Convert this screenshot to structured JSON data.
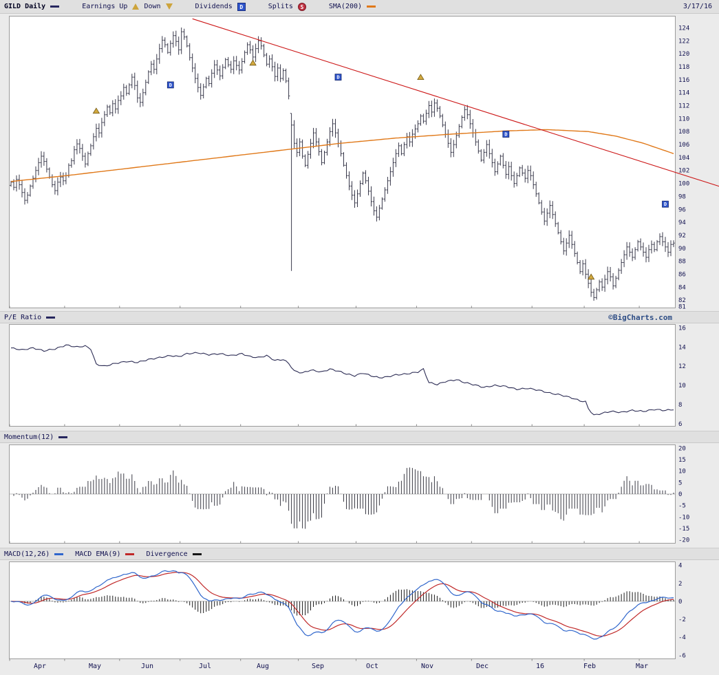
{
  "meta": {
    "date": "3/17/16",
    "watermark": "©BigCharts.com"
  },
  "legend_top": {
    "symbol": "GILD Daily",
    "earnings_up": "Earnings Up",
    "earnings_down": "Down",
    "dividends": "Dividends",
    "splits": "Splits",
    "sma": "SMA(200)"
  },
  "panel_labels": {
    "pe": "P/E Ratio",
    "momentum": "Momentum(12)",
    "macd": "MACD(12,26)",
    "macd_ema": "MACD EMA(9)",
    "divergence": "Divergence"
  },
  "icons": {
    "dividend_letter": "D",
    "split_letter": "S"
  },
  "colors": {
    "price_bars": "#38384a",
    "sma200": "#e07818",
    "trendline": "#cc1515",
    "pe_line": "#2c2c54",
    "momentum_bars": "#3a3a44",
    "macd_line": "#2f66cc",
    "macd_signal": "#c02828",
    "divergence_bars": "#1a1a1a",
    "earnings_marker": "#d2a93f",
    "dividend_marker": "#2f55cc",
    "axis_text": "#10104f"
  },
  "x_axis": {
    "months": [
      {
        "label": "Apr",
        "start_i": 0,
        "label_i": 11
      },
      {
        "label": "May",
        "start_i": 20,
        "label_i": 31
      },
      {
        "label": "Jun",
        "start_i": 40,
        "label_i": 50
      },
      {
        "label": "Jul",
        "start_i": 62,
        "label_i": 71
      },
      {
        "label": "Aug",
        "start_i": 84,
        "label_i": 92
      },
      {
        "label": "Sep",
        "start_i": 105,
        "label_i": 112
      },
      {
        "label": "Oct",
        "start_i": 126,
        "label_i": 132
      },
      {
        "label": "Nov",
        "start_i": 148,
        "label_i": 152
      },
      {
        "label": "Dec",
        "start_i": 168,
        "label_i": 172
      },
      {
        "label": "16",
        "start_i": 190,
        "label_i": 193
      },
      {
        "label": "Feb",
        "start_i": 209,
        "label_i": 211
      },
      {
        "label": "Mar",
        "start_i": 229,
        "label_i": 230
      }
    ]
  },
  "chart_data": [
    {
      "id": "price",
      "type": "ohlc-bar",
      "title": "GILD Daily",
      "ylim": [
        80.8,
        125.8
      ],
      "yticks": [
        124,
        122,
        120,
        118,
        116,
        114,
        112,
        110,
        108,
        106,
        104,
        102,
        100,
        98,
        96,
        94,
        92,
        90,
        88,
        86,
        84,
        82,
        81
      ],
      "close": [
        100.2,
        99.4,
        100.6,
        99.8,
        98.6,
        97.4,
        98.2,
        99.6,
        100.8,
        102.0,
        103.2,
        104.2,
        103.4,
        102.2,
        101.0,
        99.8,
        98.9,
        100.2,
        101.0,
        100.4,
        101.2,
        102.8,
        103.5,
        105.2,
        106.1,
        105.4,
        104.2,
        103.0,
        104.6,
        105.8,
        107.2,
        108.5,
        107.8,
        109.4,
        110.6,
        111.8,
        110.9,
        112.3,
        111.5,
        112.8,
        113.5,
        114.8,
        113.9,
        115.2,
        116.4,
        115.1,
        113.2,
        112.5,
        114.0,
        115.6,
        117.2,
        118.4,
        117.6,
        119.2,
        120.8,
        122.1,
        121.4,
        120.2,
        121.6,
        122.8,
        121.9,
        120.6,
        123.4,
        122.6,
        121.2,
        119.4,
        117.8,
        116.2,
        114.8,
        113.6,
        114.9,
        116.2,
        115.4,
        117.0,
        118.3,
        117.5,
        116.6,
        117.9,
        119.1,
        118.3,
        117.6,
        118.9,
        118.2,
        117.5,
        118.8,
        120.2,
        121.4,
        120.6,
        119.5,
        120.8,
        122.0,
        121.2,
        119.8,
        118.4,
        119.2,
        118.0,
        116.5,
        117.8,
        116.2,
        117.4,
        115.8,
        113.5,
        109.0,
        106.2,
        104.8,
        106.4,
        104.2,
        102.8,
        104.5,
        106.2,
        107.8,
        106.4,
        104.9,
        103.2,
        104.8,
        106.4,
        108.0,
        109.2,
        107.8,
        106.2,
        104.6,
        102.8,
        101.2,
        99.6,
        98.2,
        97.0,
        98.4,
        100.0,
        101.6,
        100.4,
        98.8,
        97.2,
        95.8,
        94.8,
        96.2,
        97.6,
        99.0,
        100.4,
        101.8,
        103.2,
        104.6,
        105.8,
        104.6,
        106.0,
        107.2,
        106.4,
        107.6,
        108.4,
        109.2,
        110.4,
        109.6,
        110.8,
        112.0,
        111.0,
        112.4,
        111.6,
        110.4,
        109.0,
        107.6,
        106.2,
        104.8,
        106.0,
        107.4,
        108.8,
        110.2,
        111.4,
        110.6,
        109.2,
        107.8,
        106.4,
        105.0,
        103.6,
        104.8,
        106.0,
        104.6,
        103.2,
        101.8,
        103.0,
        104.2,
        102.8,
        101.4,
        102.6,
        101.2,
        100.0,
        101.2,
        102.4,
        101.6,
        100.8,
        102.0,
        101.2,
        99.8,
        98.4,
        97.0,
        95.6,
        94.2,
        95.4,
        96.6,
        95.2,
        93.8,
        92.4,
        91.0,
        89.6,
        90.8,
        92.0,
        90.6,
        89.2,
        87.8,
        86.4,
        87.6,
        86.0,
        84.6,
        83.2,
        82.4,
        83.6,
        84.8,
        84.0,
        85.2,
        86.4,
        85.6,
        84.2,
        85.4,
        86.6,
        87.8,
        89.0,
        90.2,
        89.4,
        88.6,
        89.8,
        91.0,
        90.2,
        89.4,
        88.6,
        89.8,
        90.6,
        89.8,
        91.0,
        91.8,
        91.0,
        90.2,
        89.4,
        90.6,
        90.8
      ],
      "bar_overrides": {
        "102": {
          "low": 86.5,
          "high": 110.8
        },
        "212": {
          "low": 81.9
        }
      },
      "sma200_anchors": [
        [
          0,
          100.3
        ],
        [
          20,
          101.2
        ],
        [
          40,
          102.2
        ],
        [
          60,
          103.2
        ],
        [
          80,
          104.2
        ],
        [
          100,
          105.2
        ],
        [
          120,
          106.2
        ],
        [
          140,
          107.0
        ],
        [
          160,
          107.6
        ],
        [
          180,
          108.1
        ],
        [
          195,
          108.3
        ],
        [
          210,
          108.0
        ],
        [
          220,
          107.3
        ],
        [
          230,
          106.2
        ],
        [
          241,
          104.6
        ]
      ],
      "trendline": {
        "from": {
          "i": 66,
          "price": 125.4
        },
        "to": {
          "i": 258,
          "price": 99.5
        }
      },
      "markers": {
        "earnings_up": [
          {
            "i": 31,
            "price": 111.2
          },
          {
            "i": 88,
            "price": 118.6
          },
          {
            "i": 149,
            "price": 116.4
          },
          {
            "i": 211,
            "price": 85.6
          }
        ],
        "dividends": [
          {
            "i": 58,
            "price": 115.2
          },
          {
            "i": 119,
            "price": 116.4
          },
          {
            "i": 180,
            "price": 107.6
          },
          {
            "i": 238,
            "price": 96.8
          }
        ]
      }
    },
    {
      "id": "pe",
      "type": "line",
      "title": "P/E Ratio",
      "ylim": [
        5.75,
        16.35
      ],
      "yticks": [
        16,
        14,
        12,
        10,
        8,
        6
      ],
      "anchors": [
        [
          0,
          13.9
        ],
        [
          4,
          13.7
        ],
        [
          8,
          13.9
        ],
        [
          12,
          13.6
        ],
        [
          16,
          13.8
        ],
        [
          20,
          14.2
        ],
        [
          24,
          14.0
        ],
        [
          27,
          14.1
        ],
        [
          29,
          13.8
        ],
        [
          31,
          12.2
        ],
        [
          34,
          12.0
        ],
        [
          38,
          12.3
        ],
        [
          42,
          12.5
        ],
        [
          46,
          12.4
        ],
        [
          50,
          12.7
        ],
        [
          54,
          12.9
        ],
        [
          58,
          13.1
        ],
        [
          61,
          13.0
        ],
        [
          64,
          13.3
        ],
        [
          68,
          13.4
        ],
        [
          72,
          13.2
        ],
        [
          76,
          13.3
        ],
        [
          80,
          13.1
        ],
        [
          84,
          13.3
        ],
        [
          87,
          13.0
        ],
        [
          90,
          12.9
        ],
        [
          93,
          13.1
        ],
        [
          96,
          12.6
        ],
        [
          99,
          12.7
        ],
        [
          101,
          12.3
        ],
        [
          103,
          11.5
        ],
        [
          106,
          11.3
        ],
        [
          109,
          11.6
        ],
        [
          113,
          11.4
        ],
        [
          116,
          11.7
        ],
        [
          119,
          11.5
        ],
        [
          122,
          11.2
        ],
        [
          125,
          11.0
        ],
        [
          128,
          11.3
        ],
        [
          131,
          11.0
        ],
        [
          134,
          10.8
        ],
        [
          137,
          10.9
        ],
        [
          140,
          11.1
        ],
        [
          144,
          11.2
        ],
        [
          148,
          11.4
        ],
        [
          150,
          11.7
        ],
        [
          152,
          10.3
        ],
        [
          155,
          10.1
        ],
        [
          158,
          10.4
        ],
        [
          162,
          10.6
        ],
        [
          165,
          10.3
        ],
        [
          168,
          10.1
        ],
        [
          172,
          9.8
        ],
        [
          176,
          10.0
        ],
        [
          180,
          9.9
        ],
        [
          184,
          9.6
        ],
        [
          188,
          9.7
        ],
        [
          192,
          9.5
        ],
        [
          196,
          9.2
        ],
        [
          200,
          9.0
        ],
        [
          204,
          8.7
        ],
        [
          207,
          8.4
        ],
        [
          209,
          8.3
        ],
        [
          210,
          7.6
        ],
        [
          212,
          6.9
        ],
        [
          215,
          7.1
        ],
        [
          218,
          7.3
        ],
        [
          222,
          7.2
        ],
        [
          226,
          7.4
        ],
        [
          230,
          7.3
        ],
        [
          234,
          7.5
        ],
        [
          238,
          7.4
        ],
        [
          241,
          7.5
        ]
      ]
    },
    {
      "id": "momentum",
      "type": "bar",
      "title": "Momentum(12)",
      "period": 12,
      "derivation": "momentum[i] = close[i] - close[i-12], computed from the price panel close series",
      "ylim": [
        -21.5,
        21.5
      ],
      "yticks": [
        20,
        15,
        10,
        5,
        0,
        -5,
        -10,
        -15,
        -20
      ]
    },
    {
      "id": "macd",
      "type": "macd",
      "title": "MACD(12,26)",
      "fast": 12,
      "slow": 26,
      "signal": 9,
      "derivation": "MACD = EMA12(close) - EMA26(close); signal = EMA9(MACD); divergence = MACD - signal; computed from the price panel close series",
      "ylim": [
        -6.4,
        4.4
      ],
      "yticks": [
        4,
        2,
        0,
        -2,
        -4,
        -6
      ]
    }
  ]
}
